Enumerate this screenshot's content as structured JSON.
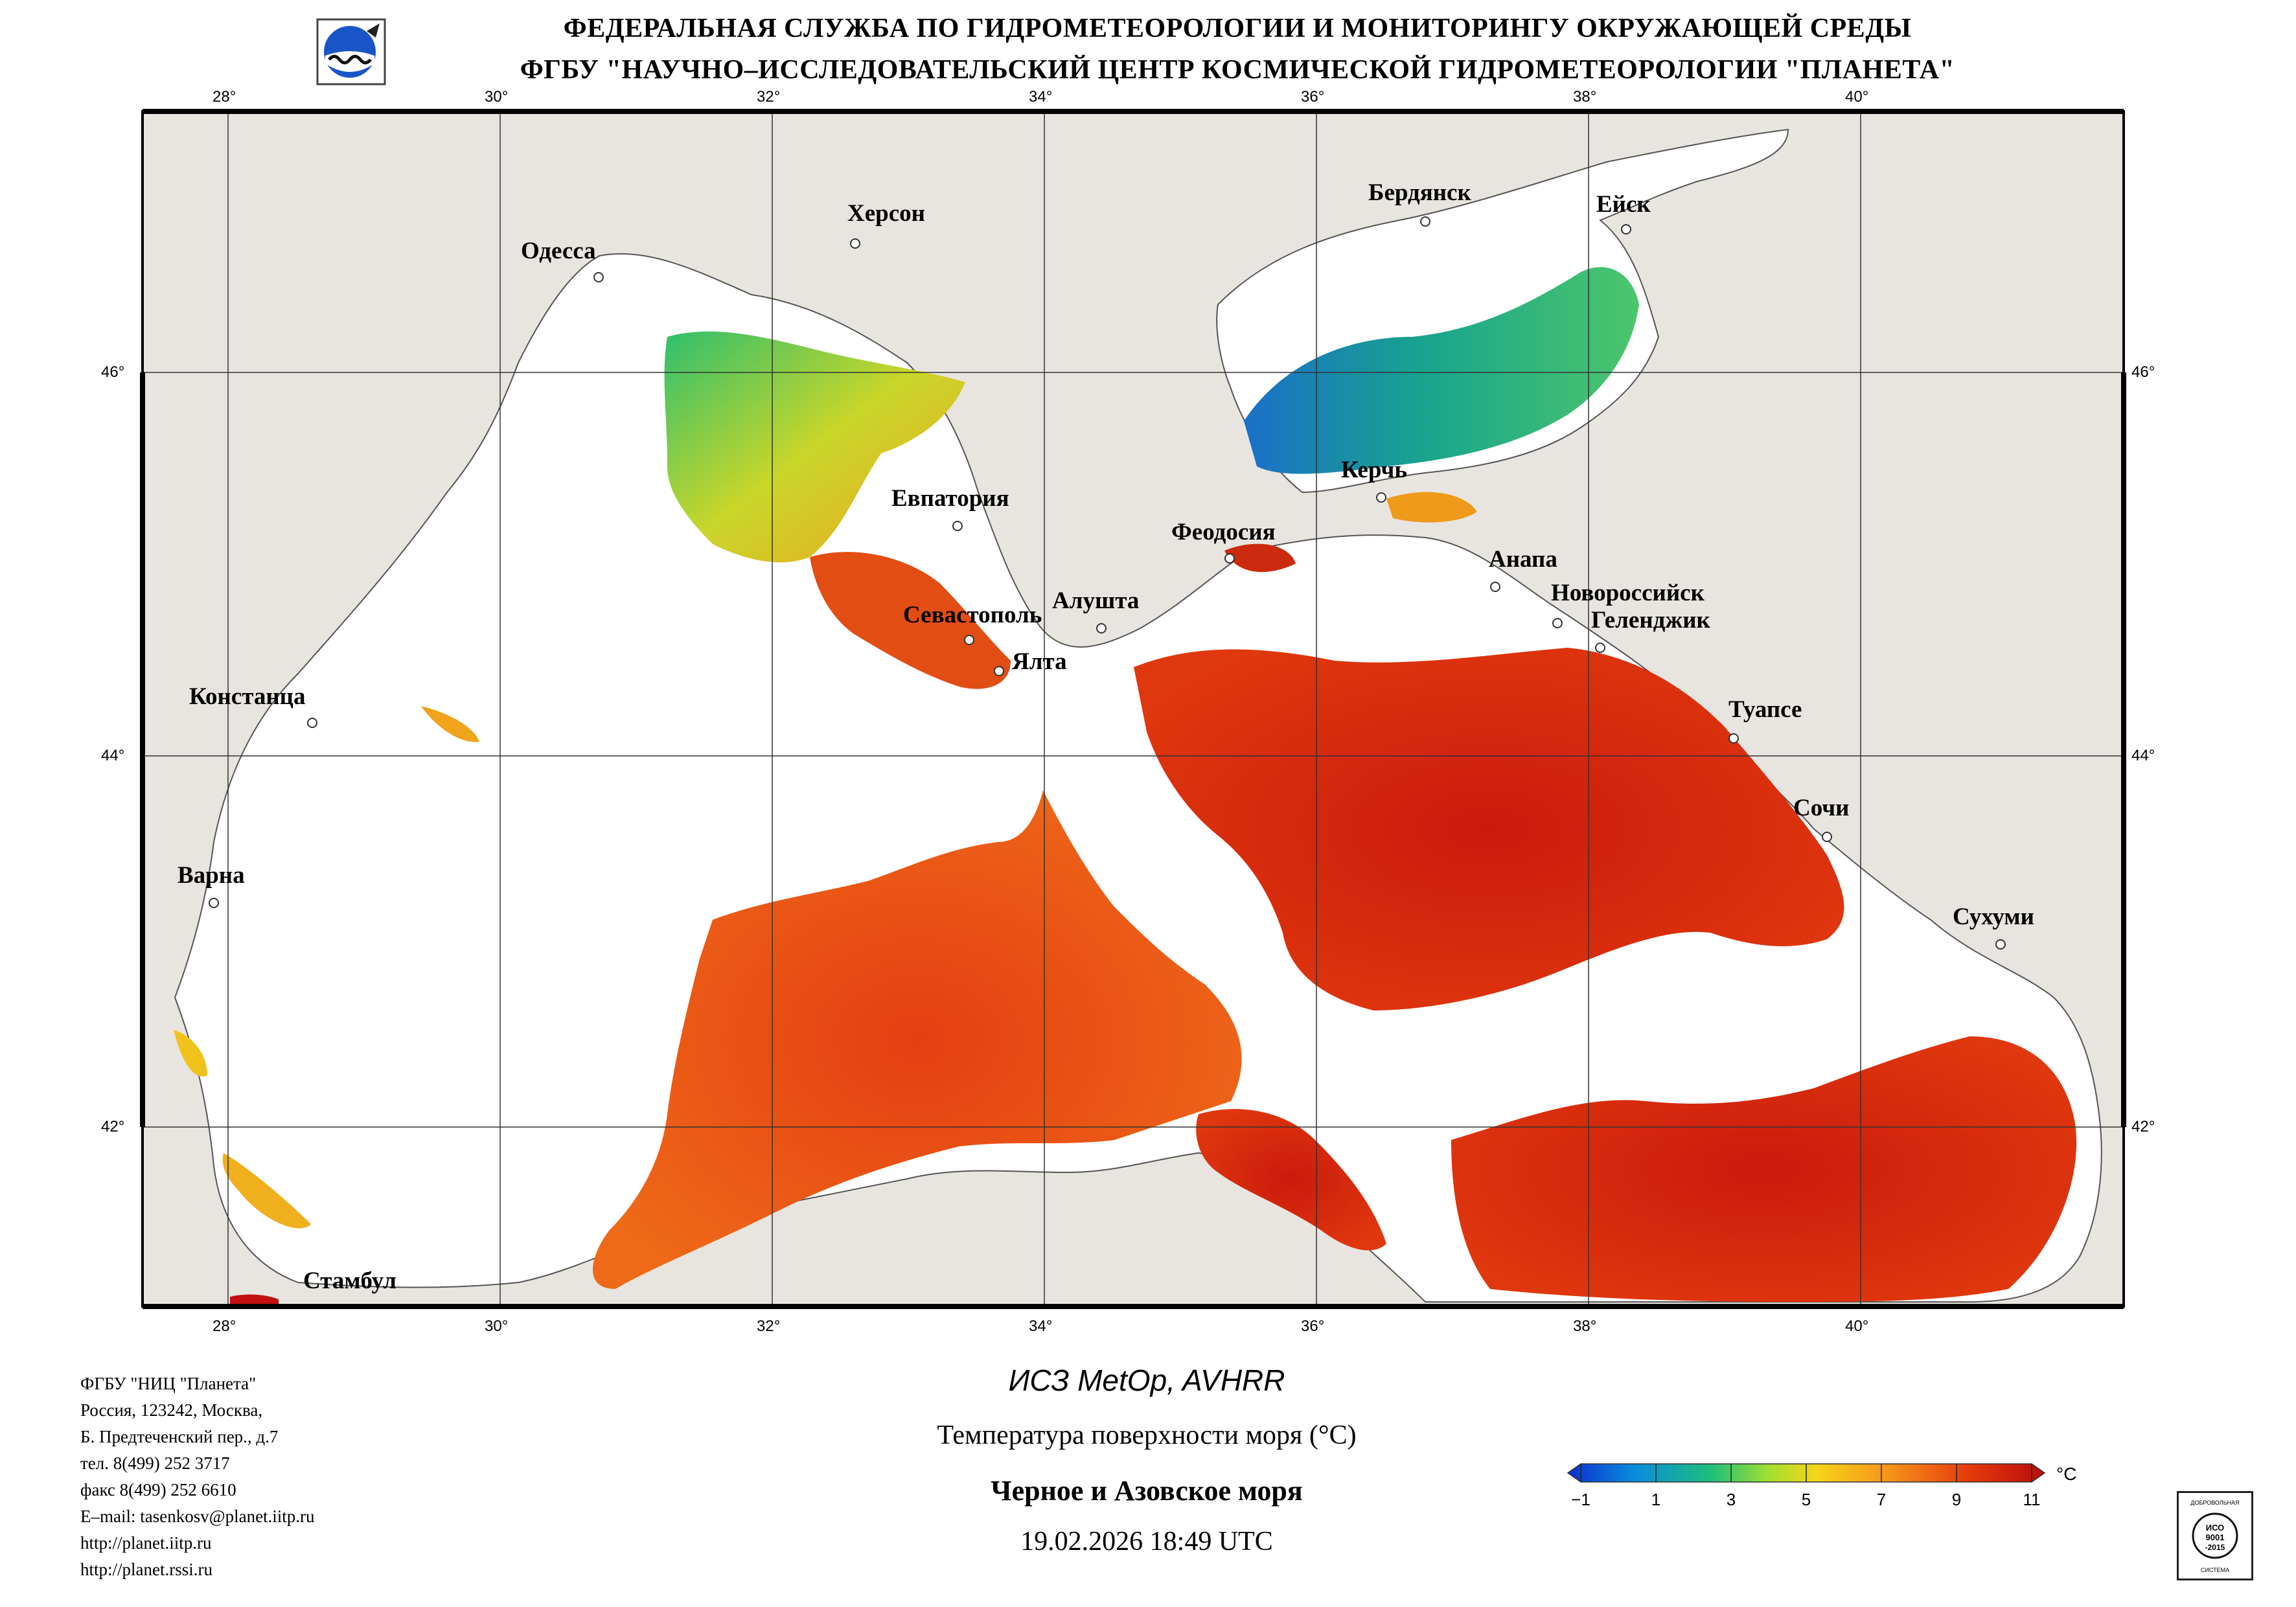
{
  "header": {
    "line1": "ФЕДЕРАЛЬНАЯ СЛУЖБА ПО ГИДРОМЕТЕОРОЛОГИИ И МОНИТОРИНГУ ОКРУЖАЮЩЕЙ СРЕДЫ",
    "line2": "ФГБУ \"НАУЧНО–ИССЛЕДОВАТЕЛЬСКИЙ ЦЕНТР КОСМИЧЕСКОЙ ГИДРОМЕТЕОРОЛОГИИ \"ПЛАНЕТА\""
  },
  "map": {
    "lon_labels": [
      "28°",
      "30°",
      "32°",
      "34°",
      "36°",
      "38°",
      "40°"
    ],
    "lat_labels": [
      "46°",
      "44°",
      "42°"
    ],
    "cities": [
      {
        "name": "Одесса"
      },
      {
        "name": "Херсон"
      },
      {
        "name": "Бердянск"
      },
      {
        "name": "Ейск"
      },
      {
        "name": "Евпатория"
      },
      {
        "name": "Керчь"
      },
      {
        "name": "Феодосия"
      },
      {
        "name": "Анапа"
      },
      {
        "name": "Новороссийск"
      },
      {
        "name": "Геленджик"
      },
      {
        "name": "Севастополь"
      },
      {
        "name": "Алушта"
      },
      {
        "name": "Ялта"
      },
      {
        "name": "Констанца"
      },
      {
        "name": "Туапсе"
      },
      {
        "name": "Сочи"
      },
      {
        "name": "Варна"
      },
      {
        "name": "Сухуми"
      },
      {
        "name": "Стамбул"
      }
    ],
    "colors": {
      "land": "#e8e5e0",
      "sea_no_data": "#ffffff",
      "border": "#000000"
    }
  },
  "contact": {
    "lines": [
      "ФГБУ \"НИЦ \"Планета\"",
      "Россия, 123242, Москва,",
      "Б. Предтеченский пер., д.7",
      "тел. 8(499) 252 3717",
      "факс 8(499) 252 6610",
      "E–mail: tasenkosv@planet.iitp.ru",
      "http://planet.iitp.ru",
      "http://planet.rssi.ru"
    ]
  },
  "caption": {
    "satellite": "ИСЗ MetOp, AVHRR",
    "parameter": "Температура поверхности моря (°C)",
    "region": "Черное и Азовское моря",
    "datetime": "19.02.2026 18:49 UTC"
  },
  "colorbar": {
    "unit": "°C",
    "ticks": [
      "−1",
      "1",
      "3",
      "5",
      "7",
      "9",
      "11"
    ],
    "min": -1,
    "max": 11,
    "colors": [
      "#0a2fd0",
      "#0a8cdc",
      "#1dbf7a",
      "#a0e030",
      "#f5d51a",
      "#f5901a",
      "#e53b0c",
      "#b80c0c"
    ]
  },
  "badge": {
    "top": "ДОБРОВОЛЬНАЯ",
    "center": "ИСО 9001 -2015",
    "bottom": "СИСТЕМА"
  }
}
